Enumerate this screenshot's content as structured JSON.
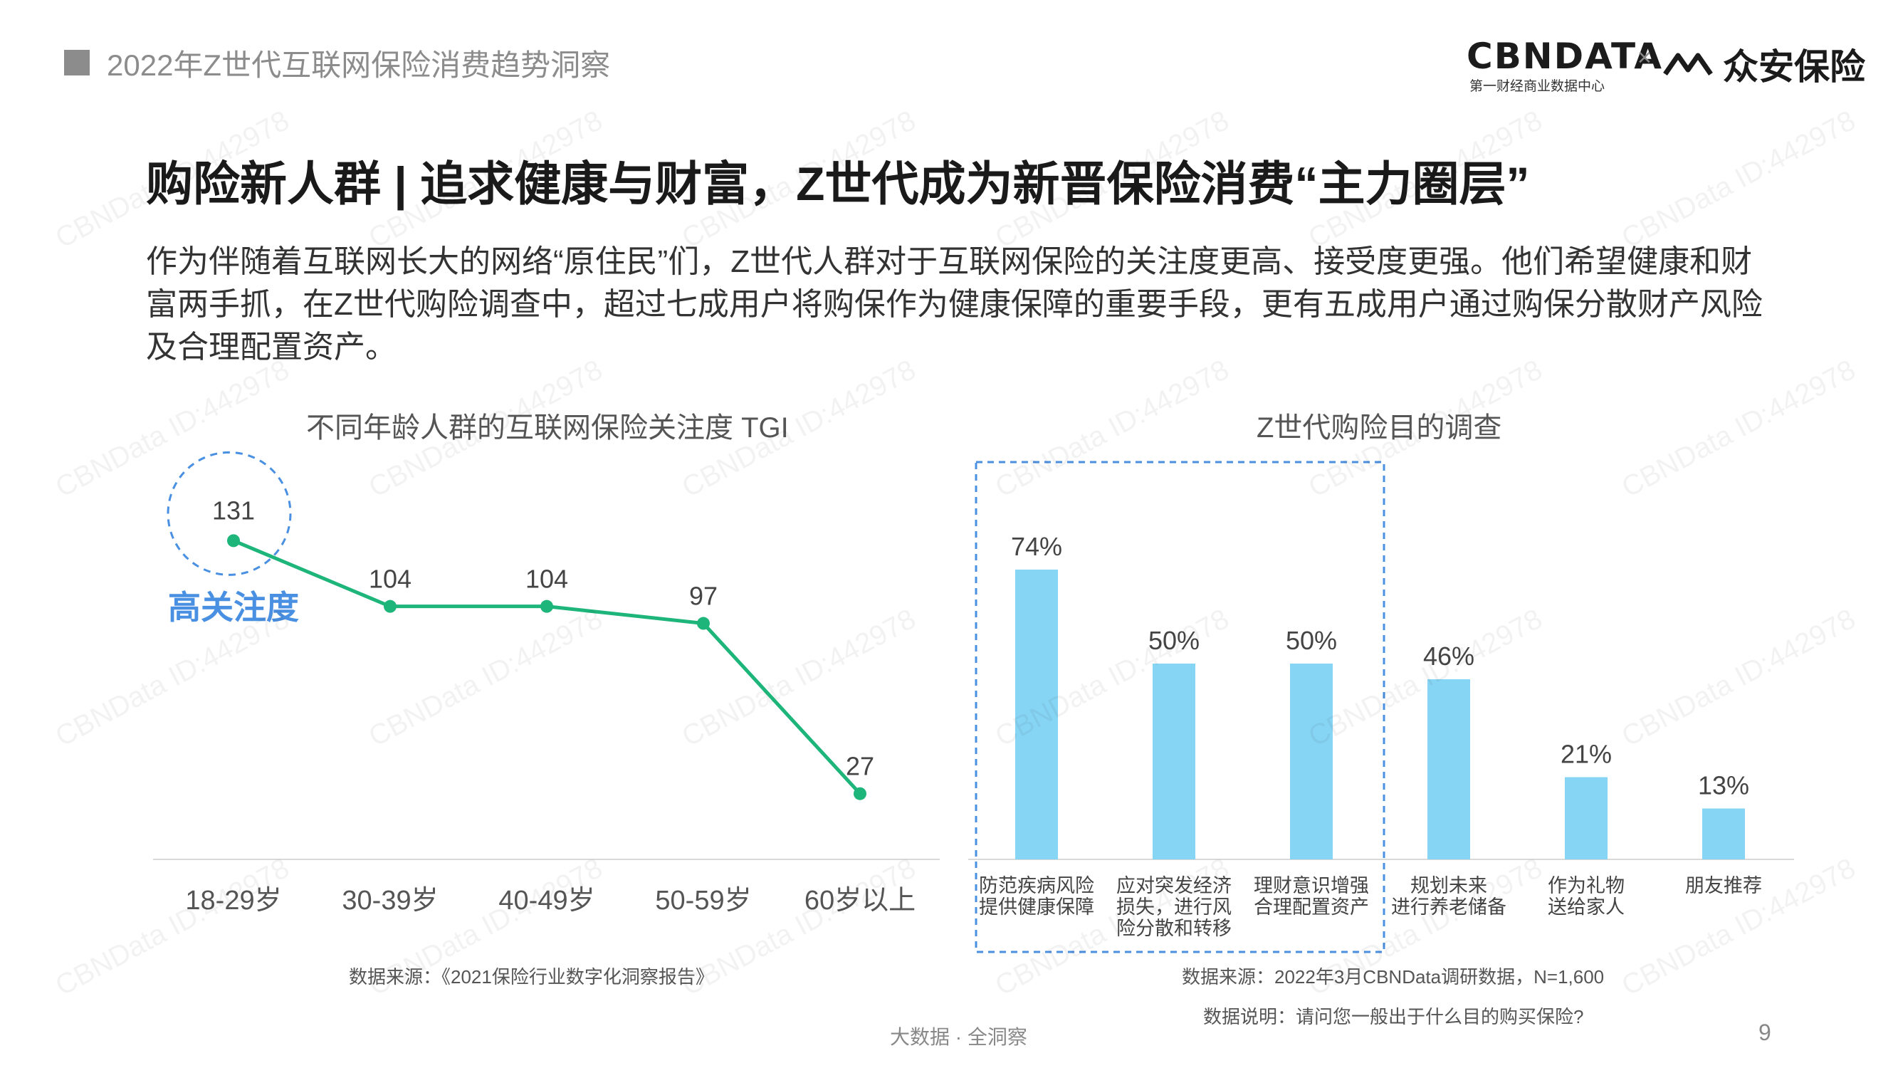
{
  "header": {
    "report_title": "2022年Z世代互联网保险消费趋势洞察",
    "logo_cbn": "CBNDATA",
    "logo_cbn_sub": "第一财经商业数据中心",
    "logo_x": "×",
    "logo_za": "众安保险"
  },
  "headline": "购险新人群 | 追求健康与财富，Z世代成为新晋保险消费“主力圈层”",
  "body_text": "作为伴随着互联网长大的网络“原住民”们，Z世代人群对于互联网保险的关注度更高、接受度更强。他们希望健康和财富两手抓，在Z世代购险调查中，超过七成用户将购保作为健康保障的重要手段，更有五成用户通过购保分散财产风险及合理配置资产。",
  "left_chart_title": "不同年龄人群的互联网保险关注度 TGI",
  "right_chart_title": "Z世代购险目的调查",
  "highlight_label": "高关注度",
  "left_source": "数据来源：《2021保险行业数字化洞察报告》",
  "right_source": "数据来源：2022年3月CBNData调研数据，N=1,600",
  "right_note": "数据说明：请问您一般出于什么目的购买保险?",
  "footer": "大数据 · 全洞察",
  "page_number": "9",
  "watermark": "CBNData ID:442978",
  "colors": {
    "line": "#1db57a",
    "bar": "#87d5f5",
    "highlight": "#4a90e2",
    "accent_text": "#4a90e2"
  },
  "chart_data": [
    {
      "type": "line",
      "categories": [
        "18-29岁",
        "30-39岁",
        "40-49岁",
        "50-59岁",
        "60岁以上"
      ],
      "values": [
        131,
        104,
        104,
        97,
        27
      ],
      "data_labels": [
        "131",
        "104",
        "104",
        "97",
        "27"
      ],
      "ylim": [
        0,
        140
      ],
      "grid": false,
      "highlight_index": 0
    },
    {
      "type": "bar",
      "categories": [
        "防范疾病风险\n提供健康保障",
        "应对突发经济\n损失，进行风\n险分散和转移",
        "理财意识增强\n合理配置资产",
        "规划未来\n进行养老储备",
        "作为礼物\n送给家人",
        "朋友推荐"
      ],
      "values": [
        74,
        50,
        50,
        46,
        21,
        13
      ],
      "data_labels": [
        "74%",
        "50%",
        "50%",
        "46%",
        "21%",
        "13%"
      ],
      "ylim": [
        0,
        80
      ],
      "grid": false,
      "highlight_range": [
        0,
        2
      ]
    }
  ]
}
